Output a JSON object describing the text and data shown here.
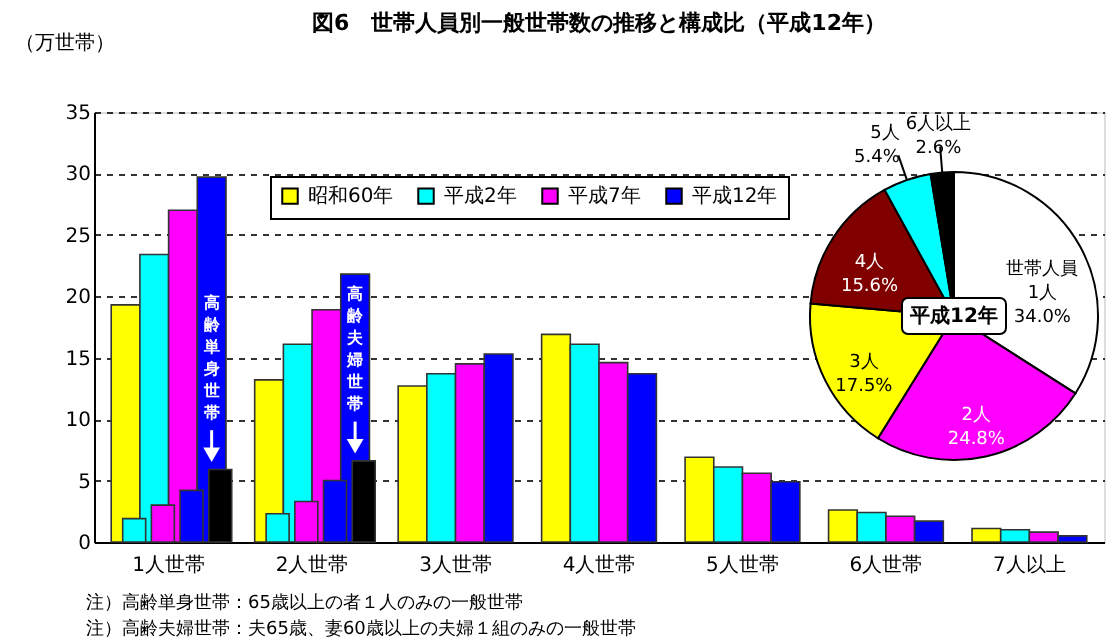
{
  "chart_data": [
    {
      "type": "bar",
      "title": "図6　世帯人員別一般世帯数の推移と構成比（平成12年）",
      "ylabel": "（万世帯）",
      "categories": [
        "1人世帯",
        "2人世帯",
        "3人世帯",
        "4人世帯",
        "5人世帯",
        "6人世帯",
        "7人以上"
      ],
      "series": [
        {
          "name": "昭和60年",
          "color": "#ffff00",
          "values": [
            19.3,
            13.2,
            12.7,
            16.9,
            6.9,
            2.6,
            1.1
          ]
        },
        {
          "name": "平成2年",
          "color": "#00ffff",
          "values": [
            23.4,
            16.1,
            13.7,
            16.1,
            6.1,
            2.4,
            1.0
          ]
        },
        {
          "name": "平成7年",
          "color": "#ff00ff",
          "values": [
            27.0,
            18.9,
            14.5,
            14.6,
            5.6,
            2.1,
            0.8
          ]
        },
        {
          "name": "平成12年",
          "color": "#0000ff",
          "values": [
            29.7,
            21.8,
            15.3,
            13.7,
            4.9,
            1.7,
            0.5
          ]
        },
        {
          "color": "#00ffff",
          "values": [
            1.9,
            2.3,
            null,
            null,
            null,
            null,
            null
          ]
        },
        {
          "color": "#ff00ff",
          "values": [
            3.0,
            3.3,
            null,
            null,
            null,
            null,
            null
          ]
        },
        {
          "color": "#0000ff",
          "values": [
            4.2,
            5.0,
            null,
            null,
            null,
            null,
            null
          ]
        },
        {
          "color": "#000000",
          "values": [
            5.9,
            6.6,
            null,
            null,
            null,
            null,
            null
          ]
        }
      ],
      "ylim": [
        0,
        35
      ],
      "yticks": [
        0,
        5,
        10,
        15,
        20,
        25,
        30,
        35
      ],
      "grid": "y",
      "legend": "top left",
      "annotations": [
        "高齢単身世帯",
        "高齢夫婦世帯",
        "注）高齢単身世帯：65歳以上の者１人のみの一般世帯",
        "注）高齢夫婦世帯：夫65歳、妻60歳以上の夫婦１組のみの一般世帯"
      ]
    },
    {
      "type": "pie",
      "categories": [
        "世帯人員 1人",
        "2人",
        "3人",
        "4人",
        "5人",
        "6人以上"
      ],
      "values": [
        34.0,
        24.8,
        17.5,
        15.6,
        5.4,
        2.6
      ],
      "colors": [
        "#ffffff",
        "#ff00ff",
        "#ffff00",
        "#800000",
        "#00ffff",
        "#000000"
      ],
      "value_labels": [
        "34.0%",
        "24.8%",
        "17.5%",
        "15.6%",
        "5.4%",
        "2.6%"
      ],
      "annotations": [
        "平成12年"
      ]
    }
  ]
}
